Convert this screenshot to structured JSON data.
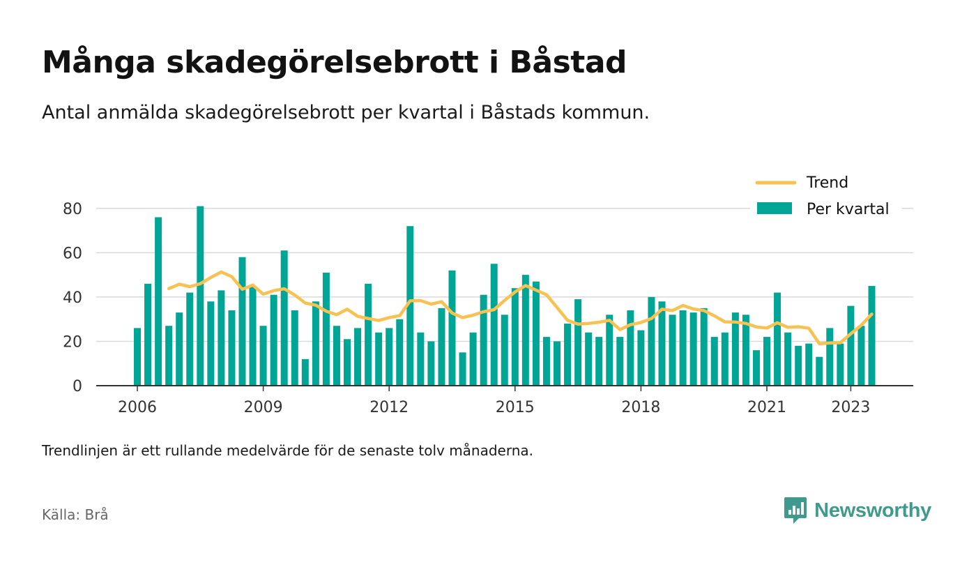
{
  "title": "Många skadegörelsebrott i Båstad",
  "subtitle": "Antal anmälda skadegörelsebrott per kvartal i Båstads kommun.",
  "footnote": "Trendlinjen är ett rullande medelvärde för de senaste tolv månaderna.",
  "source": "Källa: Brå",
  "brand": {
    "name": "Newsworthy",
    "icon": "newsworthy-logo-icon"
  },
  "colors": {
    "bar": "#00a596",
    "trend": "#f7c252",
    "grid": "#d9d9d9",
    "axis": "#333333",
    "brand": "#3f9a8e"
  },
  "chart_data": {
    "type": "bar",
    "title": "Många skadegörelsebrott i Båstad",
    "xlabel": "",
    "ylabel": "",
    "ylim": [
      0,
      90
    ],
    "yticks": [
      0,
      20,
      40,
      60,
      80
    ],
    "xticks": [
      "2006",
      "2009",
      "2012",
      "2015",
      "2018",
      "2021",
      "2023"
    ],
    "grid": true,
    "legend_position": "top-right",
    "categories": [
      "2006 Q1",
      "2006 Q2",
      "2006 Q3",
      "2006 Q4",
      "2007 Q1",
      "2007 Q2",
      "2007 Q3",
      "2007 Q4",
      "2008 Q1",
      "2008 Q2",
      "2008 Q3",
      "2008 Q4",
      "2009 Q1",
      "2009 Q2",
      "2009 Q3",
      "2009 Q4",
      "2010 Q1",
      "2010 Q2",
      "2010 Q3",
      "2010 Q4",
      "2011 Q1",
      "2011 Q2",
      "2011 Q3",
      "2011 Q4",
      "2012 Q1",
      "2012 Q2",
      "2012 Q3",
      "2012 Q4",
      "2013 Q1",
      "2013 Q2",
      "2013 Q3",
      "2013 Q4",
      "2014 Q1",
      "2014 Q2",
      "2014 Q3",
      "2014 Q4",
      "2015 Q1",
      "2015 Q2",
      "2015 Q3",
      "2015 Q4",
      "2016 Q1",
      "2016 Q2",
      "2016 Q3",
      "2016 Q4",
      "2017 Q1",
      "2017 Q2",
      "2017 Q3",
      "2017 Q4",
      "2018 Q1",
      "2018 Q2",
      "2018 Q3",
      "2018 Q4",
      "2019 Q1",
      "2019 Q2",
      "2019 Q3",
      "2019 Q4",
      "2020 Q1",
      "2020 Q2",
      "2020 Q3",
      "2020 Q4",
      "2021 Q1",
      "2021 Q2",
      "2021 Q3",
      "2021 Q4",
      "2022 Q1",
      "2022 Q2",
      "2022 Q3",
      "2022 Q4",
      "2023 Q1",
      "2023 Q2",
      "2023 Q3"
    ],
    "series": [
      {
        "name": "Per kvartal",
        "type": "bar",
        "values": [
          26,
          46,
          76,
          27,
          33,
          42,
          81,
          38,
          43,
          34,
          58,
          45,
          27,
          41,
          61,
          34,
          12,
          38,
          51,
          27,
          21,
          26,
          46,
          24,
          26,
          30,
          72,
          24,
          20,
          35,
          52,
          15,
          24,
          41,
          55,
          32,
          44,
          50,
          47,
          22,
          20,
          28,
          39,
          24,
          22,
          32,
          22,
          34,
          25,
          40,
          38,
          32,
          34,
          33,
          35,
          22,
          24,
          33,
          32,
          16,
          22,
          42,
          24,
          18,
          19,
          13,
          26,
          19,
          36,
          27,
          45
        ]
      },
      {
        "name": "Trend",
        "type": "line",
        "values": [
          null,
          null,
          null,
          43.8,
          45.8,
          44.7,
          46.0,
          48.8,
          51.3,
          49.2,
          43.5,
          45.4,
          41.3,
          42.9,
          43.7,
          40.9,
          37.3,
          36.3,
          33.6,
          32.0,
          34.5,
          31.3,
          30.3,
          29.4,
          30.7,
          31.6,
          38.3,
          38.4,
          36.8,
          37.9,
          32.8,
          30.7,
          31.8,
          33.4,
          34.3,
          38.5,
          42.3,
          45.2,
          43.1,
          41.0,
          35.3,
          29.5,
          27.8,
          28.1,
          28.6,
          29.5,
          25.3,
          27.5,
          28.5,
          30.3,
          34.5,
          33.9,
          36.2,
          34.6,
          33.9,
          31.5,
          28.8,
          28.7,
          28.1,
          26.5,
          26.0,
          28.4,
          26.3,
          26.6,
          25.9,
          18.9,
          19.3,
          19.4,
          23.4,
          27.3,
          32.3
        ]
      }
    ]
  }
}
